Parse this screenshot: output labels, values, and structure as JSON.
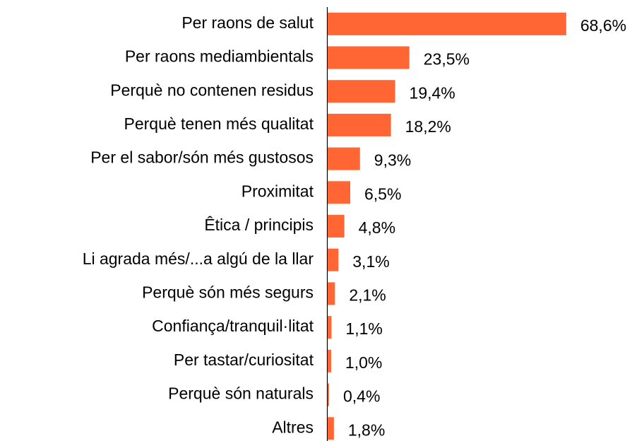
{
  "chart_data": {
    "type": "hbar",
    "categories": [
      "Per raons de salut",
      "Per raons mediambientals",
      "Perquè no contenen residus",
      "Perquè tenen més qualitat",
      "Per el sabor/són més gustosos",
      "Proximitat",
      "Êtica / principis",
      "Li agrada més/...a algú de la llar",
      "Perquè són més segurs",
      "Confiança/tranquil·litat",
      "Per tastar/curiositat",
      "Perquè són naturals",
      "Altres"
    ],
    "values": [
      68.6,
      23.5,
      19.4,
      18.2,
      9.3,
      6.5,
      4.8,
      3.1,
      2.1,
      1.1,
      1.0,
      0.4,
      1.8
    ],
    "value_labels": [
      "68,6%",
      "23,5%",
      "19,4%",
      "18,2%",
      "9,3%",
      "6,5%",
      "4,8%",
      "3,1%",
      "2,1%",
      "1,1%",
      "1,0%",
      "0,4%",
      "1,8%"
    ],
    "color": "#ff6633",
    "xlim": [
      0,
      80
    ]
  }
}
